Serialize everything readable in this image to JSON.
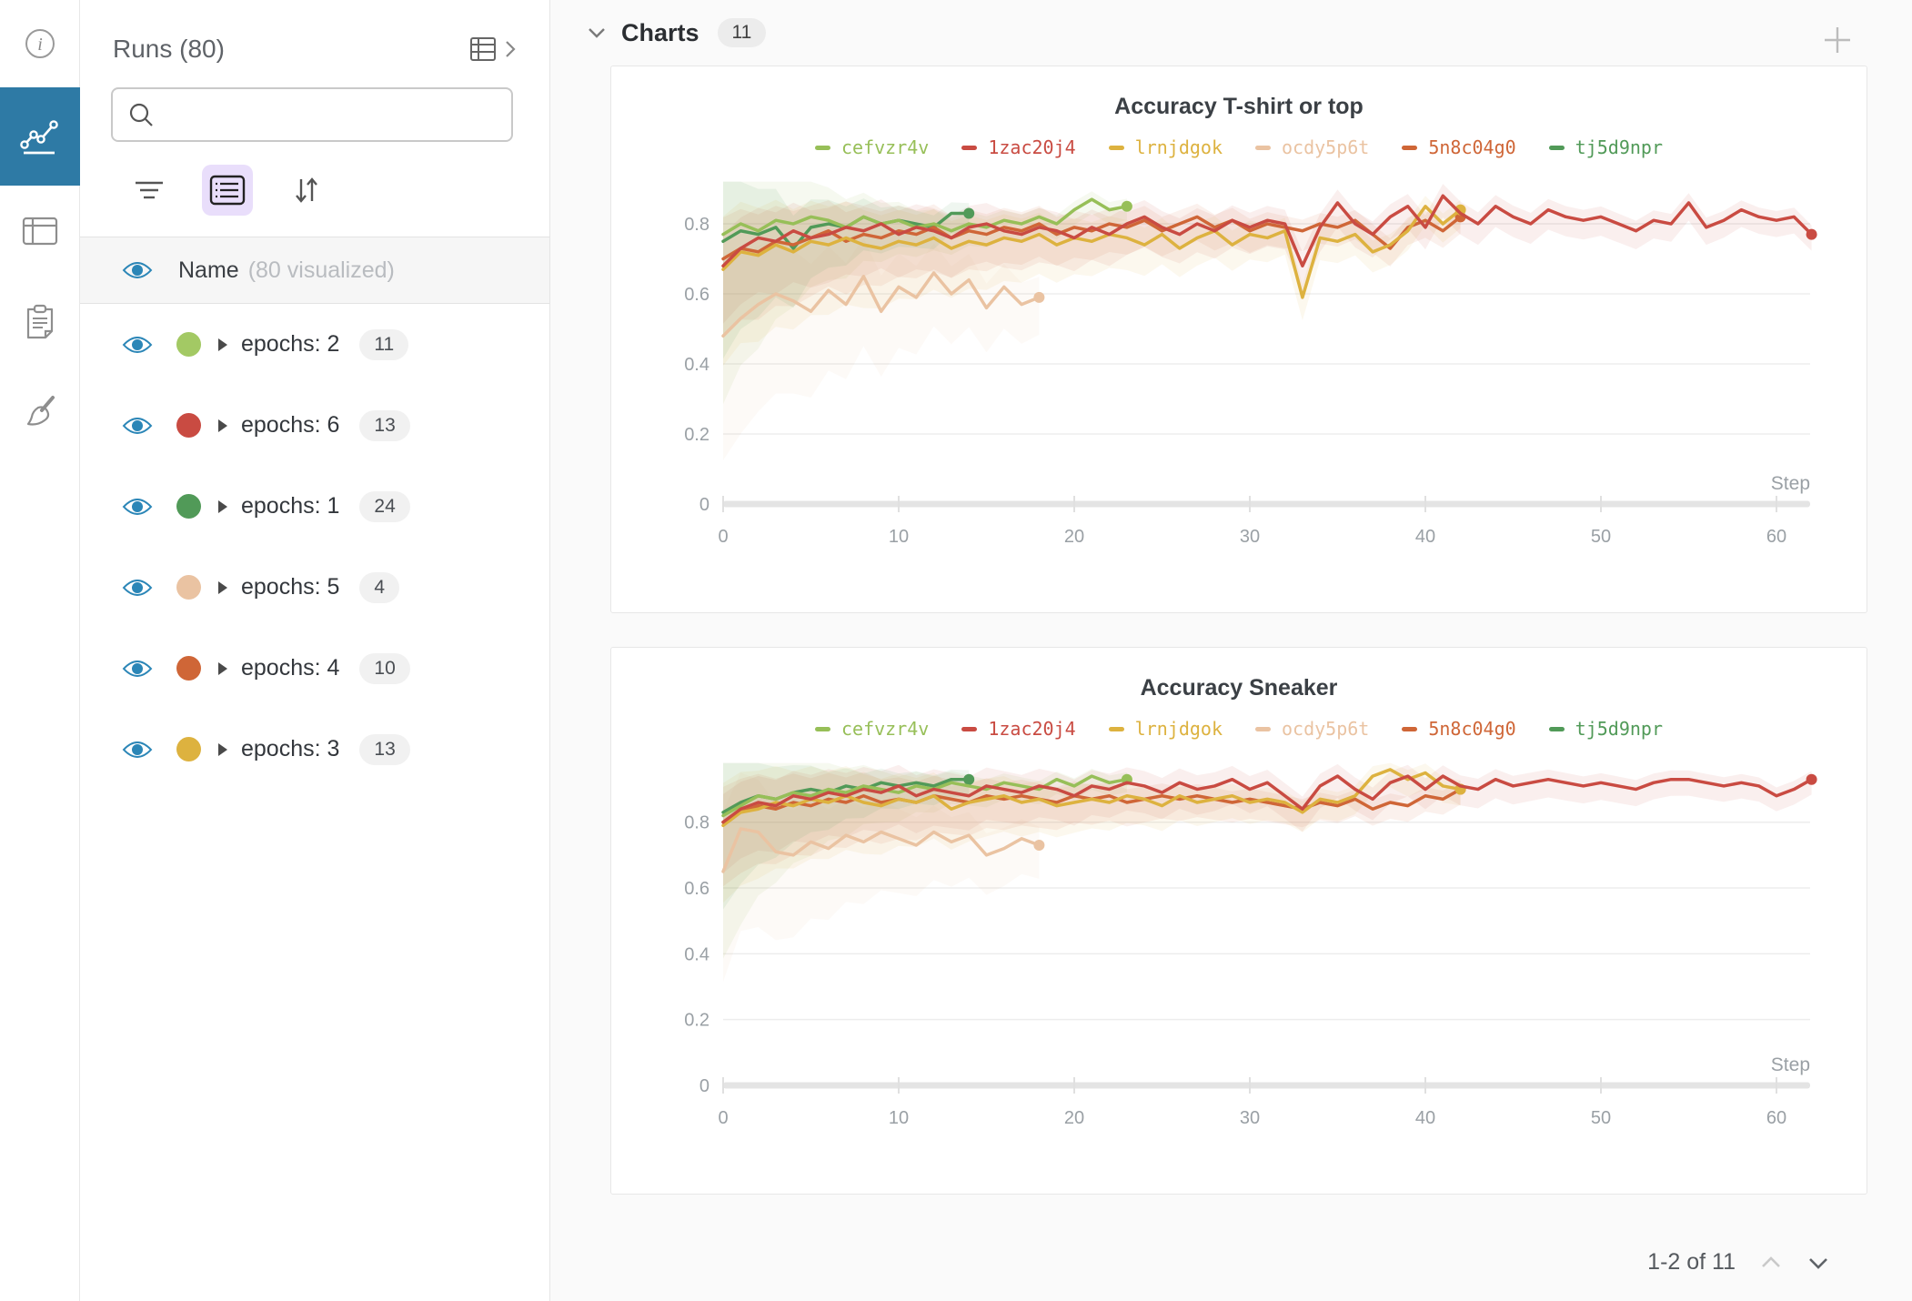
{
  "rail": {
    "items": [
      {
        "icon": "info-icon",
        "selected": false
      },
      {
        "icon": "line-chart-icon",
        "selected": true
      },
      {
        "icon": "table-icon",
        "selected": false
      },
      {
        "icon": "clipboard-icon",
        "selected": false
      },
      {
        "icon": "broom-icon",
        "selected": false
      }
    ],
    "selected_bg": "#2e7aa5"
  },
  "runs_panel": {
    "title": "Runs (80)",
    "search_placeholder": "",
    "search_value": "",
    "name_label": "Name",
    "name_note": "(80 visualized)",
    "groups": [
      {
        "label": "epochs: 2",
        "count": "11",
        "color": "#a3c964"
      },
      {
        "label": "epochs: 6",
        "count": "13",
        "color": "#c94b42"
      },
      {
        "label": "epochs: 1",
        "count": "24",
        "color": "#519a58"
      },
      {
        "label": "epochs: 5",
        "count": "4",
        "color": "#eac3a2"
      },
      {
        "label": "epochs: 4",
        "count": "10",
        "color": "#cf6637"
      },
      {
        "label": "epochs: 3",
        "count": "13",
        "color": "#ddb23f"
      }
    ]
  },
  "main": {
    "header": {
      "title": "Charts",
      "badge": "11"
    },
    "pagination": {
      "label": "1-2 of 11"
    }
  },
  "colors": {
    "eye_blue": "#2b86b7",
    "rail_selected": "#2e7aa5",
    "grid_line": "#ededed",
    "axis_bar": "#e4e4e4",
    "tick_text": "#9aa0a5"
  },
  "chart_data": [
    {
      "type": "line",
      "title": "Accuracy T-shirt or top",
      "xlabel": "Step",
      "x_ticks": [
        0,
        10,
        20,
        30,
        40,
        50,
        60
      ],
      "y_ticks": [
        0,
        0.2,
        0.4,
        0.6,
        0.8
      ],
      "xlim": [
        0,
        63
      ],
      "ylim": [
        0,
        0.93
      ],
      "grid": true,
      "legend_position": "top",
      "series": [
        {
          "name": "cefvzr4v",
          "color": "#97bf58",
          "band": [
            0.45,
            5
          ],
          "values": [
            0.77,
            0.8,
            0.78,
            0.81,
            0.8,
            0.82,
            0.81,
            0.79,
            0.82,
            0.8,
            0.81,
            0.79,
            0.8,
            0.78,
            0.8,
            0.79,
            0.81,
            0.8,
            0.82,
            0.8,
            0.84,
            0.87,
            0.84,
            0.85
          ]
        },
        {
          "name": "1zac20j4",
          "color": "#c94b42",
          "band": [
            0.13,
            26
          ],
          "values": [
            0.68,
            0.73,
            0.76,
            0.75,
            0.78,
            0.76,
            0.77,
            0.79,
            0.78,
            0.8,
            0.77,
            0.79,
            0.78,
            0.76,
            0.79,
            0.8,
            0.78,
            0.77,
            0.79,
            0.78,
            0.76,
            0.79,
            0.77,
            0.8,
            0.82,
            0.79,
            0.77,
            0.8,
            0.78,
            0.81,
            0.79,
            0.81,
            0.8,
            0.68,
            0.79,
            0.86,
            0.8,
            0.77,
            0.82,
            0.85,
            0.79,
            0.88,
            0.83,
            0.8,
            0.85,
            0.82,
            0.8,
            0.84,
            0.82,
            0.81,
            0.82,
            0.8,
            0.78,
            0.81,
            0.8,
            0.86,
            0.79,
            0.81,
            0.84,
            0.82,
            0.81,
            0.82,
            0.77
          ]
        },
        {
          "name": "lrnjdgok",
          "color": "#ddb23f",
          "band": [
            0.24,
            16
          ],
          "values": [
            0.67,
            0.72,
            0.71,
            0.74,
            0.72,
            0.75,
            0.74,
            0.76,
            0.74,
            0.73,
            0.75,
            0.74,
            0.76,
            0.73,
            0.75,
            0.74,
            0.76,
            0.75,
            0.77,
            0.74,
            0.76,
            0.75,
            0.77,
            0.76,
            0.74,
            0.77,
            0.73,
            0.76,
            0.78,
            0.74,
            0.77,
            0.76,
            0.78,
            0.59,
            0.76,
            0.75,
            0.77,
            0.72,
            0.74,
            0.78,
            0.85,
            0.8,
            0.84
          ]
        },
        {
          "name": "ocdy5p6t",
          "color": "#eac3a2",
          "band": [
            0.32,
            12
          ],
          "values": [
            0.48,
            0.53,
            0.57,
            0.6,
            0.58,
            0.55,
            0.61,
            0.57,
            0.65,
            0.55,
            0.62,
            0.59,
            0.66,
            0.6,
            0.64,
            0.56,
            0.62,
            0.57,
            0.59
          ]
        },
        {
          "name": "5n8c04g0",
          "color": "#cf6637",
          "band": [
            0.18,
            16
          ],
          "values": [
            0.7,
            0.73,
            0.72,
            0.75,
            0.74,
            0.76,
            0.78,
            0.75,
            0.77,
            0.76,
            0.78,
            0.77,
            0.79,
            0.76,
            0.78,
            0.77,
            0.79,
            0.78,
            0.8,
            0.77,
            0.79,
            0.78,
            0.8,
            0.79,
            0.81,
            0.78,
            0.8,
            0.82,
            0.79,
            0.81,
            0.78,
            0.8,
            0.79,
            0.78,
            0.8,
            0.79,
            0.81,
            0.77,
            0.73,
            0.79,
            0.81,
            0.78,
            0.82
          ]
        },
        {
          "name": "tj5d9npr",
          "color": "#519a58",
          "band": [
            0.3,
            5
          ],
          "values": [
            0.75,
            0.78,
            0.77,
            0.79,
            0.73,
            0.79,
            0.8,
            0.79,
            0.82,
            0.8,
            0.81,
            0.8,
            0.79,
            0.83,
            0.83
          ]
        }
      ]
    },
    {
      "type": "line",
      "title": "Accuracy Sneaker",
      "xlabel": "Step",
      "x_ticks": [
        0,
        10,
        20,
        30,
        40,
        50,
        60
      ],
      "y_ticks": [
        0,
        0.2,
        0.4,
        0.6,
        0.8
      ],
      "xlim": [
        0,
        63
      ],
      "ylim": [
        0,
        0.99
      ],
      "grid": true,
      "legend_position": "top",
      "series": [
        {
          "name": "cefvzr4v",
          "color": "#97bf58",
          "band": [
            0.4,
            5
          ],
          "values": [
            0.82,
            0.85,
            0.88,
            0.87,
            0.89,
            0.88,
            0.9,
            0.89,
            0.91,
            0.9,
            0.89,
            0.91,
            0.9,
            0.92,
            0.91,
            0.9,
            0.92,
            0.91,
            0.9,
            0.93,
            0.91,
            0.94,
            0.92,
            0.93
          ]
        },
        {
          "name": "1zac20j4",
          "color": "#c94b42",
          "band": [
            0.12,
            26
          ],
          "values": [
            0.8,
            0.84,
            0.86,
            0.85,
            0.88,
            0.87,
            0.89,
            0.88,
            0.9,
            0.89,
            0.91,
            0.88,
            0.9,
            0.89,
            0.88,
            0.91,
            0.9,
            0.89,
            0.91,
            0.9,
            0.88,
            0.91,
            0.9,
            0.92,
            0.91,
            0.89,
            0.92,
            0.9,
            0.91,
            0.93,
            0.9,
            0.92,
            0.88,
            0.84,
            0.91,
            0.94,
            0.9,
            0.87,
            0.92,
            0.94,
            0.9,
            0.94,
            0.91,
            0.9,
            0.93,
            0.91,
            0.92,
            0.93,
            0.92,
            0.91,
            0.92,
            0.91,
            0.9,
            0.92,
            0.93,
            0.93,
            0.92,
            0.91,
            0.92,
            0.91,
            0.88,
            0.9,
            0.93
          ]
        },
        {
          "name": "lrnjdgok",
          "color": "#ddb23f",
          "band": [
            0.2,
            16
          ],
          "values": [
            0.79,
            0.83,
            0.84,
            0.86,
            0.85,
            0.87,
            0.86,
            0.88,
            0.86,
            0.85,
            0.87,
            0.86,
            0.88,
            0.84,
            0.86,
            0.87,
            0.88,
            0.86,
            0.87,
            0.85,
            0.86,
            0.87,
            0.86,
            0.88,
            0.87,
            0.85,
            0.88,
            0.86,
            0.87,
            0.88,
            0.86,
            0.87,
            0.86,
            0.83,
            0.87,
            0.86,
            0.88,
            0.94,
            0.96,
            0.93,
            0.95,
            0.91,
            0.9
          ]
        },
        {
          "name": "ocdy5p6t",
          "color": "#eac3a2",
          "band": [
            0.3,
            12
          ],
          "values": [
            0.65,
            0.78,
            0.77,
            0.71,
            0.7,
            0.74,
            0.72,
            0.76,
            0.74,
            0.77,
            0.75,
            0.73,
            0.77,
            0.74,
            0.76,
            0.7,
            0.72,
            0.75,
            0.73
          ]
        },
        {
          "name": "5n8c04g0",
          "color": "#cf6637",
          "band": [
            0.16,
            16
          ],
          "values": [
            0.8,
            0.83,
            0.85,
            0.84,
            0.86,
            0.85,
            0.87,
            0.86,
            0.88,
            0.86,
            0.87,
            0.86,
            0.88,
            0.87,
            0.86,
            0.88,
            0.87,
            0.88,
            0.87,
            0.86,
            0.88,
            0.87,
            0.88,
            0.86,
            0.87,
            0.88,
            0.87,
            0.88,
            0.87,
            0.86,
            0.87,
            0.86,
            0.85,
            0.84,
            0.86,
            0.85,
            0.87,
            0.84,
            0.86,
            0.85,
            0.88,
            0.87,
            0.9
          ]
        },
        {
          "name": "tj5d9npr",
          "color": "#519a58",
          "band": [
            0.26,
            5
          ],
          "values": [
            0.83,
            0.86,
            0.88,
            0.87,
            0.89,
            0.9,
            0.89,
            0.91,
            0.9,
            0.92,
            0.91,
            0.92,
            0.91,
            0.93,
            0.93
          ]
        }
      ]
    }
  ]
}
